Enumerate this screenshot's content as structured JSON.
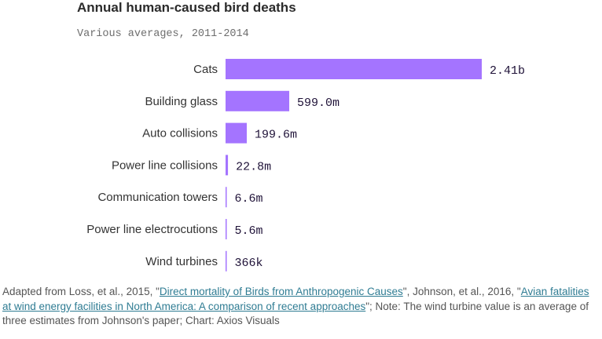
{
  "chart_data": {
    "type": "bar",
    "orientation": "horizontal",
    "title": "Annual human-caused bird deaths",
    "subtitle": "Various averages, 2011-2014",
    "categories": [
      "Cats",
      "Building glass",
      "Auto collisions",
      "Power line collisions",
      "Communication towers",
      "Power line electrocutions",
      "Wind turbines"
    ],
    "values": [
      2410000000,
      599000000,
      199600000,
      22800000,
      6600000,
      5600000,
      366000
    ],
    "value_labels": [
      "2.41b",
      "599.0m",
      "199.6m",
      "22.8m",
      "6.6m",
      "5.6m",
      "366k"
    ],
    "xlim": [
      0,
      2410000000
    ],
    "grid": false,
    "bar_color": "#a474ff"
  },
  "footer": {
    "text1": "Adapted from Loss, et al., 2015, \"",
    "link1": "Direct mortality of Birds from Anthropogenic Causes",
    "text2": "\", Johnson, et al., 2016, \"",
    "link2": "Avian fatalities at wind energy facilities in North America: A comparison of recent approaches",
    "text3": "\"; Note: The wind turbine value is an average of three estimates from Johnson's paper; Chart: Axios Visuals"
  }
}
